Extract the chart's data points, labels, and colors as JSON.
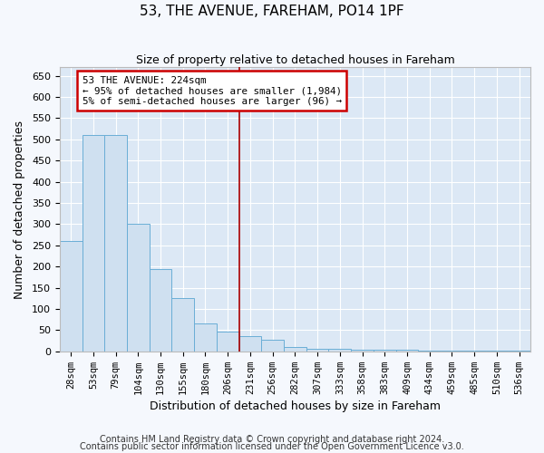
{
  "title1": "53, THE AVENUE, FAREHAM, PO14 1PF",
  "title2": "Size of property relative to detached houses in Fareham",
  "xlabel": "Distribution of detached houses by size in Fareham",
  "ylabel": "Number of detached properties",
  "bar_color": "#cfe0f0",
  "bar_edge_color": "#6aaed6",
  "bg_color": "#dce8f5",
  "grid_color": "#ffffff",
  "fig_color": "#f5f8fd",
  "bins": [
    "28sqm",
    "53sqm",
    "79sqm",
    "104sqm",
    "130sqm",
    "155sqm",
    "180sqm",
    "206sqm",
    "231sqm",
    "256sqm",
    "282sqm",
    "307sqm",
    "333sqm",
    "358sqm",
    "383sqm",
    "409sqm",
    "434sqm",
    "459sqm",
    "485sqm",
    "510sqm",
    "536sqm"
  ],
  "values": [
    260,
    510,
    510,
    300,
    195,
    125,
    65,
    47,
    37,
    28,
    11,
    6,
    5,
    3,
    3,
    3,
    2,
    2,
    2,
    2,
    2
  ],
  "ylim": [
    0,
    670
  ],
  "yticks": [
    0,
    50,
    100,
    150,
    200,
    250,
    300,
    350,
    400,
    450,
    500,
    550,
    600,
    650
  ],
  "vline_idx": 8,
  "annotation_text": "53 THE AVENUE: 224sqm\n← 95% of detached houses are smaller (1,984)\n5% of semi-detached houses are larger (96) →",
  "annotation_box_color": "#ffffff",
  "annotation_border_color": "#cc0000",
  "vline_color": "#aa0000",
  "footnote1": "Contains HM Land Registry data © Crown copyright and database right 2024.",
  "footnote2": "Contains public sector information licensed under the Open Government Licence v3.0."
}
